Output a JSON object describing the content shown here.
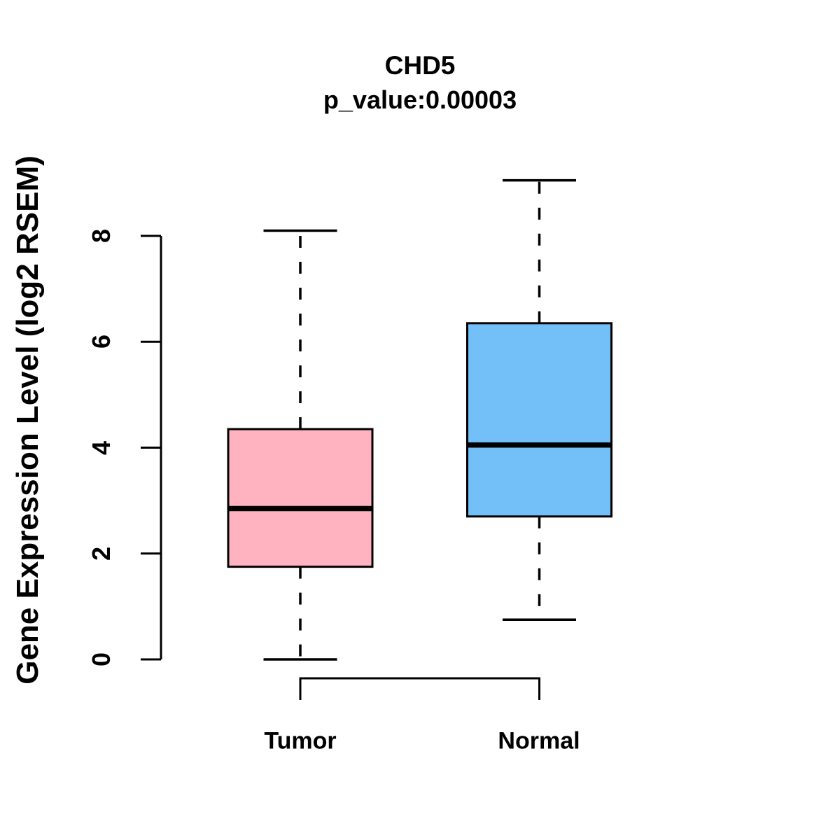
{
  "header": {
    "title": "CHD5",
    "subtitle": "p_value:0.00003"
  },
  "chart_data": {
    "type": "boxplot",
    "title": "CHD5",
    "subtitle": "p_value:0.00003",
    "xlabel": "",
    "ylabel": "Gene Expression Level (log2 RSEM)",
    "ylim": [
      0,
      9.2
    ],
    "yticks": [
      0,
      2,
      4,
      6,
      8
    ],
    "grid": false,
    "legend": "none",
    "categories": [
      "Tumor",
      "Normal"
    ],
    "series": [
      {
        "name": "Tumor",
        "fill_color": "#FFB3C1",
        "whisker_low": 0,
        "q1": 1.75,
        "median": 2.85,
        "q3": 4.35,
        "whisker_high": 8.1
      },
      {
        "name": "Normal",
        "fill_color": "#73BFF7",
        "whisker_low": 0.75,
        "q1": 2.7,
        "median": 4.05,
        "q3": 6.35,
        "whisker_high": 9.05
      }
    ],
    "stroke_color": "#000000",
    "background": "#FFFFFF"
  }
}
